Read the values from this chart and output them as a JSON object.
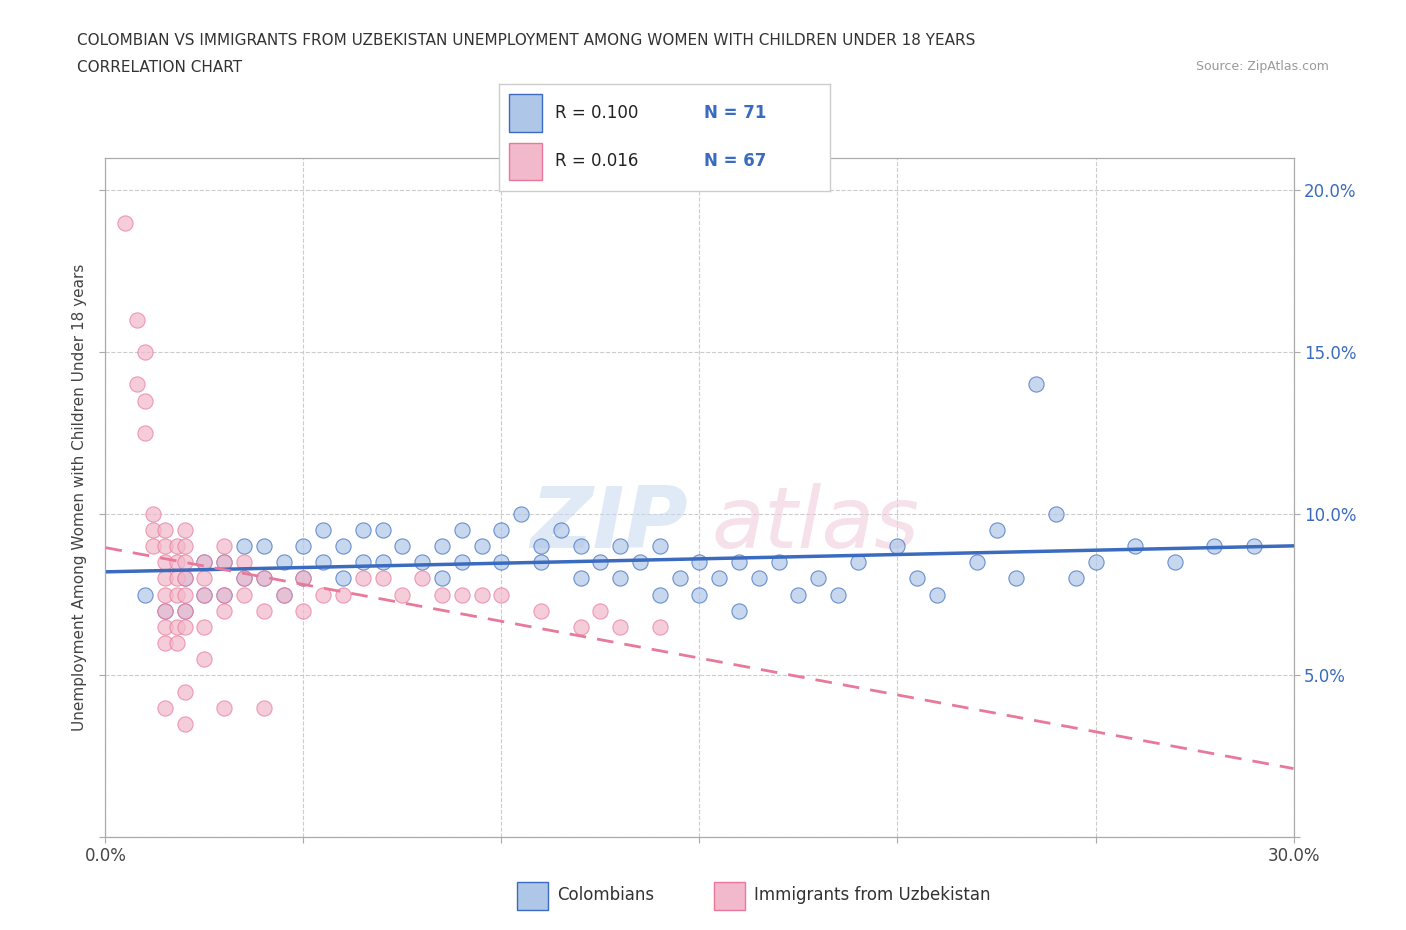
{
  "title_line1": "COLOMBIAN VS IMMIGRANTS FROM UZBEKISTAN UNEMPLOYMENT AMONG WOMEN WITH CHILDREN UNDER 18 YEARS",
  "title_line2": "CORRELATION CHART",
  "source": "Source: ZipAtlas.com",
  "ylabel": "Unemployment Among Women with Children Under 18 years",
  "xlim": [
    0.0,
    0.3
  ],
  "ylim": [
    0.0,
    0.21
  ],
  "xticks": [
    0.0,
    0.05,
    0.1,
    0.15,
    0.2,
    0.25,
    0.3
  ],
  "yticks": [
    0.0,
    0.05,
    0.1,
    0.15,
    0.2
  ],
  "color_blue": "#aec6e8",
  "color_pink": "#f2b8cb",
  "trendline_blue": "#3a6bbf",
  "trendline_pink": "#e8799a",
  "watermark_zip": "ZIP",
  "watermark_atlas": "atlas",
  "blue_scatter": [
    [
      0.01,
      0.075
    ],
    [
      0.015,
      0.07
    ],
    [
      0.02,
      0.08
    ],
    [
      0.02,
      0.07
    ],
    [
      0.025,
      0.085
    ],
    [
      0.025,
      0.075
    ],
    [
      0.03,
      0.085
    ],
    [
      0.03,
      0.075
    ],
    [
      0.035,
      0.09
    ],
    [
      0.035,
      0.08
    ],
    [
      0.04,
      0.09
    ],
    [
      0.04,
      0.08
    ],
    [
      0.045,
      0.085
    ],
    [
      0.045,
      0.075
    ],
    [
      0.05,
      0.09
    ],
    [
      0.05,
      0.08
    ],
    [
      0.055,
      0.085
    ],
    [
      0.055,
      0.095
    ],
    [
      0.06,
      0.09
    ],
    [
      0.06,
      0.08
    ],
    [
      0.065,
      0.095
    ],
    [
      0.065,
      0.085
    ],
    [
      0.07,
      0.095
    ],
    [
      0.07,
      0.085
    ],
    [
      0.075,
      0.09
    ],
    [
      0.08,
      0.085
    ],
    [
      0.085,
      0.09
    ],
    [
      0.085,
      0.08
    ],
    [
      0.09,
      0.095
    ],
    [
      0.09,
      0.085
    ],
    [
      0.095,
      0.09
    ],
    [
      0.1,
      0.095
    ],
    [
      0.1,
      0.085
    ],
    [
      0.105,
      0.1
    ],
    [
      0.11,
      0.09
    ],
    [
      0.11,
      0.085
    ],
    [
      0.115,
      0.095
    ],
    [
      0.12,
      0.09
    ],
    [
      0.12,
      0.08
    ],
    [
      0.125,
      0.085
    ],
    [
      0.13,
      0.09
    ],
    [
      0.13,
      0.08
    ],
    [
      0.135,
      0.085
    ],
    [
      0.14,
      0.09
    ],
    [
      0.14,
      0.075
    ],
    [
      0.145,
      0.08
    ],
    [
      0.15,
      0.085
    ],
    [
      0.15,
      0.075
    ],
    [
      0.155,
      0.08
    ],
    [
      0.16,
      0.085
    ],
    [
      0.16,
      0.07
    ],
    [
      0.165,
      0.08
    ],
    [
      0.17,
      0.085
    ],
    [
      0.175,
      0.075
    ],
    [
      0.18,
      0.08
    ],
    [
      0.185,
      0.075
    ],
    [
      0.19,
      0.085
    ],
    [
      0.2,
      0.09
    ],
    [
      0.205,
      0.08
    ],
    [
      0.21,
      0.075
    ],
    [
      0.22,
      0.085
    ],
    [
      0.225,
      0.095
    ],
    [
      0.23,
      0.08
    ],
    [
      0.235,
      0.14
    ],
    [
      0.24,
      0.1
    ],
    [
      0.245,
      0.08
    ],
    [
      0.25,
      0.085
    ],
    [
      0.26,
      0.09
    ],
    [
      0.27,
      0.085
    ],
    [
      0.28,
      0.09
    ],
    [
      0.29,
      0.09
    ]
  ],
  "pink_scatter": [
    [
      0.005,
      0.19
    ],
    [
      0.008,
      0.16
    ],
    [
      0.008,
      0.14
    ],
    [
      0.01,
      0.15
    ],
    [
      0.01,
      0.135
    ],
    [
      0.01,
      0.125
    ],
    [
      0.012,
      0.1
    ],
    [
      0.012,
      0.095
    ],
    [
      0.012,
      0.09
    ],
    [
      0.015,
      0.095
    ],
    [
      0.015,
      0.09
    ],
    [
      0.015,
      0.085
    ],
    [
      0.015,
      0.08
    ],
    [
      0.015,
      0.075
    ],
    [
      0.015,
      0.07
    ],
    [
      0.015,
      0.065
    ],
    [
      0.015,
      0.06
    ],
    [
      0.015,
      0.04
    ],
    [
      0.018,
      0.09
    ],
    [
      0.018,
      0.085
    ],
    [
      0.018,
      0.08
    ],
    [
      0.018,
      0.075
    ],
    [
      0.018,
      0.065
    ],
    [
      0.018,
      0.06
    ],
    [
      0.02,
      0.095
    ],
    [
      0.02,
      0.09
    ],
    [
      0.02,
      0.085
    ],
    [
      0.02,
      0.08
    ],
    [
      0.02,
      0.075
    ],
    [
      0.02,
      0.07
    ],
    [
      0.02,
      0.065
    ],
    [
      0.02,
      0.045
    ],
    [
      0.02,
      0.035
    ],
    [
      0.025,
      0.085
    ],
    [
      0.025,
      0.08
    ],
    [
      0.025,
      0.075
    ],
    [
      0.025,
      0.065
    ],
    [
      0.025,
      0.055
    ],
    [
      0.03,
      0.09
    ],
    [
      0.03,
      0.085
    ],
    [
      0.03,
      0.075
    ],
    [
      0.03,
      0.07
    ],
    [
      0.03,
      0.04
    ],
    [
      0.035,
      0.085
    ],
    [
      0.035,
      0.08
    ],
    [
      0.035,
      0.075
    ],
    [
      0.04,
      0.08
    ],
    [
      0.04,
      0.07
    ],
    [
      0.04,
      0.04
    ],
    [
      0.045,
      0.075
    ],
    [
      0.05,
      0.08
    ],
    [
      0.05,
      0.07
    ],
    [
      0.055,
      0.075
    ],
    [
      0.06,
      0.075
    ],
    [
      0.065,
      0.08
    ],
    [
      0.07,
      0.08
    ],
    [
      0.075,
      0.075
    ],
    [
      0.08,
      0.08
    ],
    [
      0.085,
      0.075
    ],
    [
      0.09,
      0.075
    ],
    [
      0.095,
      0.075
    ],
    [
      0.1,
      0.075
    ],
    [
      0.11,
      0.07
    ],
    [
      0.12,
      0.065
    ],
    [
      0.125,
      0.07
    ],
    [
      0.13,
      0.065
    ],
    [
      0.14,
      0.065
    ]
  ]
}
